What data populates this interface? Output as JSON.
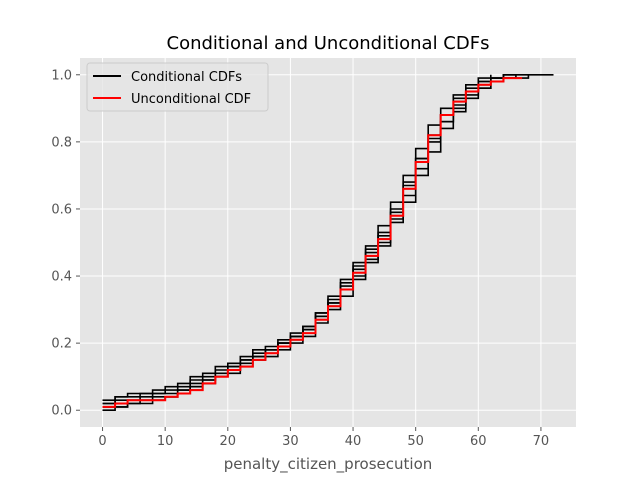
{
  "chart_data": {
    "type": "line",
    "title": "Conditional and Unconditional CDFs",
    "xlabel": "penalty_citizen_prosecution",
    "ylabel": "",
    "xlim": [
      -3.6,
      75.6
    ],
    "ylim": [
      -0.05,
      1.05
    ],
    "xticks": [
      0,
      10,
      20,
      30,
      40,
      50,
      60,
      70
    ],
    "yticks": [
      0.0,
      0.2,
      0.4,
      0.6,
      0.8,
      1.0
    ],
    "xtick_labels": [
      "0",
      "10",
      "20",
      "30",
      "40",
      "50",
      "60",
      "70"
    ],
    "ytick_labels": [
      "0.0",
      "0.2",
      "0.4",
      "0.6",
      "0.8",
      "1.0"
    ],
    "grid": true,
    "legend_position": "upper-left",
    "series": [
      {
        "name": "Conditional CDFs",
        "color": "#000000",
        "lines": [
          {
            "x": [
              0,
              2,
              4,
              6,
              8,
              10,
              12,
              14,
              16,
              18,
              20,
              22,
              24,
              26,
              28,
              30,
              32,
              34,
              36,
              38,
              40,
              42,
              44,
              46,
              48,
              50,
              52,
              54,
              56,
              58,
              60,
              62,
              64,
              66
            ],
            "y": [
              0.01,
              0.02,
              0.03,
              0.03,
              0.04,
              0.04,
              0.06,
              0.07,
              0.08,
              0.1,
              0.12,
              0.13,
              0.15,
              0.17,
              0.19,
              0.21,
              0.24,
              0.28,
              0.32,
              0.36,
              0.41,
              0.46,
              0.51,
              0.58,
              0.66,
              0.74,
              0.82,
              0.88,
              0.93,
              0.96,
              0.98,
              0.99,
              1.0,
              1.0
            ]
          },
          {
            "x": [
              0,
              2,
              4,
              6,
              8,
              10,
              12,
              14,
              16,
              18,
              20,
              22,
              24,
              26,
              28,
              30,
              32,
              34,
              36,
              38,
              40,
              42,
              44,
              46,
              48,
              50,
              52,
              54,
              56,
              58,
              60,
              62,
              64,
              66,
              68,
              70,
              72
            ],
            "y": [
              0.02,
              0.04,
              0.05,
              0.05,
              0.06,
              0.07,
              0.08,
              0.1,
              0.11,
              0.13,
              0.14,
              0.16,
              0.18,
              0.19,
              0.21,
              0.23,
              0.25,
              0.29,
              0.33,
              0.38,
              0.43,
              0.48,
              0.53,
              0.6,
              0.68,
              0.75,
              0.81,
              0.86,
              0.9,
              0.94,
              0.96,
              0.98,
              0.99,
              0.99,
              1.0,
              1.0,
              1.0
            ]
          },
          {
            "x": [
              0,
              2,
              4,
              6,
              8,
              10,
              12,
              14,
              16,
              18,
              20,
              22,
              24,
              26,
              28,
              30,
              32,
              34,
              36,
              38,
              40,
              42,
              44,
              46,
              48,
              50,
              52,
              54,
              56,
              58,
              60,
              62,
              64
            ],
            "y": [
              0.0,
              0.01,
              0.02,
              0.02,
              0.03,
              0.04,
              0.05,
              0.06,
              0.08,
              0.1,
              0.11,
              0.13,
              0.15,
              0.16,
              0.18,
              0.2,
              0.22,
              0.26,
              0.3,
              0.34,
              0.39,
              0.44,
              0.49,
              0.56,
              0.64,
              0.72,
              0.8,
              0.86,
              0.91,
              0.95,
              0.98,
              0.99,
              1.0
            ]
          },
          {
            "x": [
              0,
              2,
              4,
              6,
              8,
              10,
              12,
              14,
              16,
              18,
              20,
              22,
              24,
              26,
              28,
              30,
              32,
              34,
              36,
              38,
              40,
              42,
              44,
              46,
              48,
              50,
              52,
              54,
              56,
              58,
              60,
              62,
              64,
              66,
              68
            ],
            "y": [
              0.03,
              0.04,
              0.04,
              0.05,
              0.05,
              0.06,
              0.07,
              0.09,
              0.1,
              0.12,
              0.13,
              0.15,
              0.17,
              0.18,
              0.2,
              0.22,
              0.24,
              0.27,
              0.31,
              0.36,
              0.4,
              0.45,
              0.5,
              0.57,
              0.62,
              0.7,
              0.77,
              0.84,
              0.89,
              0.93,
              0.96,
              0.98,
              0.99,
              1.0,
              1.0
            ]
          },
          {
            "x": [
              0,
              2,
              4,
              6,
              8,
              10,
              12,
              14,
              16,
              18,
              20,
              22,
              24,
              26,
              28,
              30,
              32,
              34,
              36,
              38,
              40,
              42,
              44,
              46,
              48,
              50,
              52,
              54,
              56,
              58,
              60,
              62
            ],
            "y": [
              0.01,
              0.01,
              0.02,
              0.03,
              0.03,
              0.04,
              0.05,
              0.07,
              0.09,
              0.1,
              0.12,
              0.14,
              0.16,
              0.18,
              0.2,
              0.22,
              0.25,
              0.29,
              0.34,
              0.39,
              0.44,
              0.49,
              0.55,
              0.62,
              0.7,
              0.78,
              0.85,
              0.9,
              0.94,
              0.97,
              0.99,
              1.0
            ]
          },
          {
            "x": [
              0,
              2,
              4,
              6,
              8,
              10,
              12,
              14,
              16,
              18,
              20,
              22,
              24,
              26,
              28,
              30,
              32,
              34,
              36,
              38,
              40,
              42,
              44,
              46,
              48,
              50,
              52,
              54,
              56,
              58,
              60,
              62,
              64,
              66
            ],
            "y": [
              0.02,
              0.03,
              0.03,
              0.04,
              0.05,
              0.05,
              0.06,
              0.08,
              0.09,
              0.11,
              0.13,
              0.15,
              0.16,
              0.18,
              0.2,
              0.22,
              0.24,
              0.28,
              0.32,
              0.37,
              0.42,
              0.47,
              0.52,
              0.59,
              0.67,
              0.75,
              0.82,
              0.88,
              0.92,
              0.95,
              0.97,
              0.99,
              1.0,
              1.0
            ]
          }
        ]
      },
      {
        "name": "Unconditional CDF",
        "color": "#ff0000",
        "x": [
          0,
          2,
          4,
          6,
          8,
          10,
          12,
          14,
          16,
          18,
          20,
          22,
          24,
          26,
          28,
          30,
          32,
          34,
          36,
          38,
          40,
          42,
          44,
          46,
          48,
          50,
          52,
          54,
          56,
          58,
          60,
          62,
          64,
          66,
          67
        ],
        "y": [
          0.01,
          0.02,
          0.03,
          0.03,
          0.03,
          0.04,
          0.05,
          0.06,
          0.08,
          0.1,
          0.12,
          0.13,
          0.15,
          0.17,
          0.19,
          0.21,
          0.23,
          0.27,
          0.31,
          0.36,
          0.41,
          0.46,
          0.51,
          0.58,
          0.66,
          0.74,
          0.82,
          0.88,
          0.92,
          0.95,
          0.97,
          0.98,
          0.99,
          0.99,
          0.99
        ]
      }
    ]
  }
}
